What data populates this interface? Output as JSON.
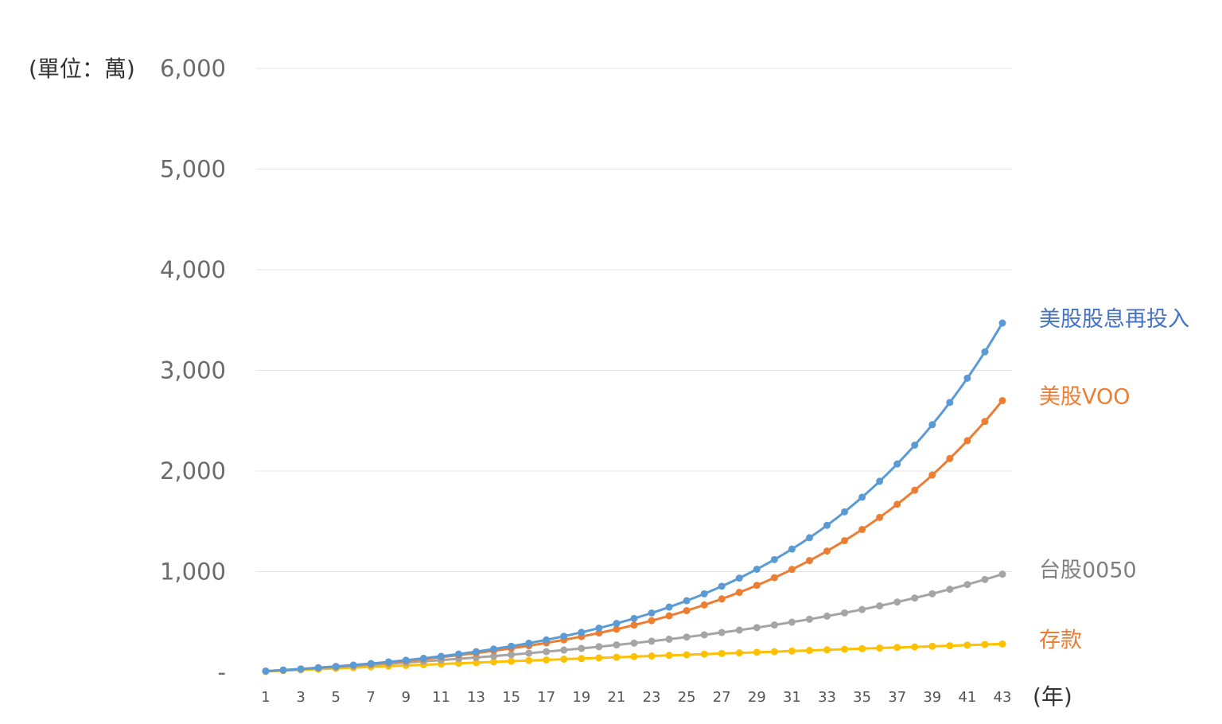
{
  "chart_data": {
    "type": "line",
    "y_unit_label": "(單位：萬)",
    "x_unit_label": "(年)",
    "ylim": [
      0,
      6000
    ],
    "y_ticks": [
      {
        "value": 0,
        "label": "-"
      },
      {
        "value": 1000,
        "label": "1,000"
      },
      {
        "value": 2000,
        "label": "2,000"
      },
      {
        "value": 3000,
        "label": "3,000"
      },
      {
        "value": 4000,
        "label": "4,000"
      },
      {
        "value": 5000,
        "label": "5,000"
      },
      {
        "value": 6000,
        "label": "6,000"
      }
    ],
    "x": [
      1,
      2,
      3,
      4,
      5,
      6,
      7,
      8,
      9,
      10,
      11,
      12,
      13,
      14,
      15,
      16,
      17,
      18,
      19,
      20,
      21,
      22,
      23,
      24,
      25,
      26,
      27,
      28,
      29,
      30,
      31,
      32,
      33,
      34,
      35,
      36,
      37,
      38,
      39,
      40,
      41,
      42,
      43
    ],
    "x_tick_labels": [
      "1",
      "3",
      "5",
      "7",
      "9",
      "11",
      "13",
      "15",
      "17",
      "19",
      "21",
      "23",
      "25",
      "27",
      "29",
      "31",
      "33",
      "35",
      "37",
      "39",
      "41",
      "43"
    ],
    "grid": "horizontal",
    "series": [
      {
        "name": "美股股息再投入",
        "color": "#5B9BD5",
        "values": [
          12,
          22,
          33,
          45,
          58,
          72,
          87,
          103,
          120,
          139,
          159,
          181,
          205,
          231,
          259,
          289,
          322,
          358,
          397,
          439,
          485,
          535,
          589,
          648,
          711,
          780,
          855,
          936,
          1024,
          1120,
          1224,
          1337,
          1460,
          1594,
          1740,
          1898,
          2070,
          2257,
          2460,
          2681,
          2922,
          3184,
          3470
        ]
      },
      {
        "name": "美股VOO",
        "color": "#ED7D31",
        "values": [
          12,
          22,
          33,
          45,
          57,
          70,
          84,
          99,
          115,
          132,
          150,
          170,
          191,
          214,
          238,
          264,
          292,
          322,
          355,
          390,
          428,
          469,
          513,
          561,
          613,
          669,
          729,
          794,
          864,
          940,
          1022,
          1110,
          1205,
          1308,
          1419,
          1539,
          1669,
          1809,
          1960,
          2124,
          2301,
          2492,
          2700
        ]
      },
      {
        "name": "台股0050",
        "color": "#A5A5A5",
        "values": [
          12,
          22,
          32,
          42,
          52,
          63,
          74,
          85,
          97,
          109,
          121,
          134,
          147,
          161,
          175,
          190,
          205,
          221,
          237,
          254,
          272,
          290,
          309,
          329,
          350,
          372,
          395,
          419,
          444,
          470,
          498,
          527,
          558,
          590,
          624,
          660,
          698,
          738,
          780,
          825,
          872,
          922,
          975
        ]
      },
      {
        "name": "存款",
        "color": "#FFC000",
        "values": [
          8,
          16,
          24,
          31,
          39,
          46,
          54,
          61,
          68,
          75,
          82,
          89,
          96,
          103,
          110,
          117,
          123,
          130,
          136,
          143,
          149,
          156,
          162,
          168,
          174,
          180,
          187,
          193,
          199,
          205,
          211,
          217,
          223,
          229,
          235,
          241,
          247,
          252,
          258,
          264,
          270,
          276,
          282
        ]
      }
    ],
    "series_labels": [
      {
        "text": "美股股息再投入",
        "color": "#4472C4"
      },
      {
        "text": "美股VOO",
        "color": "#ED7D31"
      },
      {
        "text": "台股0050",
        "color": "#7F7F7F"
      },
      {
        "text": "存款",
        "color": "#ED7D31"
      }
    ]
  }
}
